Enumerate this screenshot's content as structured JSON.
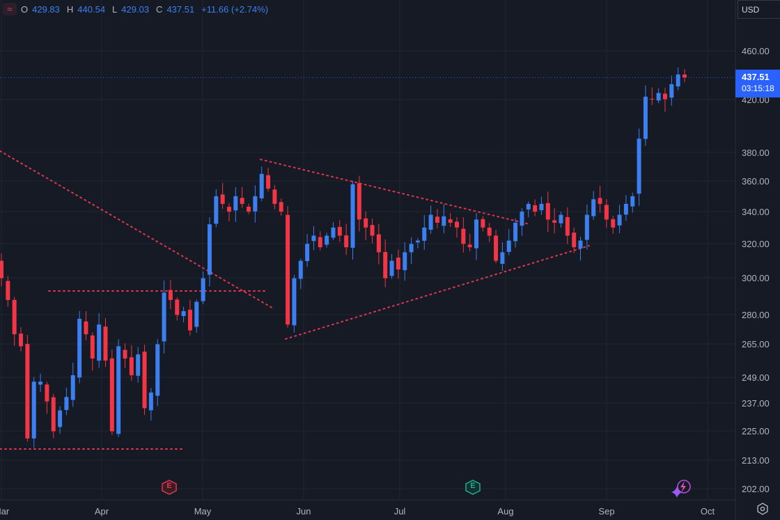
{
  "header": {
    "logo_icon": "tradingview-wave-icon",
    "ohlc": [
      {
        "key": "O",
        "value": "429.83"
      },
      {
        "key": "H",
        "value": "440.54"
      },
      {
        "key": "L",
        "value": "429.03"
      },
      {
        "key": "C",
        "value": "437.51"
      }
    ],
    "change": "+11.66 (+2.74%)"
  },
  "currency": "USD",
  "last_price": {
    "value": "437.51",
    "countdown": "03:15:18"
  },
  "colors": {
    "background": "#161a25",
    "up": "#3b7ff0",
    "down": "#f23645",
    "trendline": "#e0364f",
    "price_line": "#2962ff"
  },
  "chart_data": {
    "type": "candlestick",
    "y_scale": "log",
    "y_ticks": [
      460.0,
      420.0,
      380.0,
      360.0,
      340.0,
      320.0,
      300.0,
      280.0,
      265.0,
      249.0,
      237.0,
      225.0,
      213.0,
      202.0
    ],
    "y_tick_labels": [
      "460.00",
      "420.00",
      "380.00",
      "360.00",
      "340.00",
      "320.00",
      "300.00",
      "280.00",
      "265.00",
      "249.00",
      "237.00",
      "225.00",
      "213.00",
      "202.00"
    ],
    "x_ticks": [
      "Mar",
      "Apr",
      "May",
      "Jun",
      "Jul",
      "Aug",
      "Sep",
      "Oct"
    ],
    "last_price": 437.51,
    "closes": [
      300,
      288,
      270,
      264,
      222,
      247,
      247,
      238,
      225,
      234,
      240,
      250,
      278,
      270,
      258,
      275,
      257,
      225,
      264,
      258,
      250,
      260,
      235,
      242,
      265,
      292,
      288,
      280,
      282,
      272,
      287,
      300,
      332,
      350,
      345,
      340,
      350,
      345,
      340,
      350,
      365,
      355,
      345,
      340,
      275,
      300,
      310,
      320,
      325,
      318,
      325,
      330,
      325,
      318,
      358,
      335,
      330,
      325,
      315,
      300,
      310,
      305,
      315,
      320,
      322,
      330,
      338,
      333,
      337,
      333,
      330,
      320,
      318,
      335,
      330,
      325,
      310,
      315,
      322,
      333,
      340,
      345,
      340,
      345,
      335,
      333,
      338,
      325,
      318,
      322,
      338,
      348,
      345,
      335,
      330,
      338,
      345,
      350,
      390,
      422,
      420,
      425,
      420,
      432,
      440,
      437.51
    ],
    "events": [
      {
        "label": "E",
        "kind": "earnings-past",
        "position": "May"
      },
      {
        "label": "E",
        "kind": "earnings-upcoming",
        "position": "Aug"
      }
    ],
    "trendlines": [
      {
        "name": "long-downtrend"
      },
      {
        "name": "rectangle-top"
      },
      {
        "name": "rectangle-bottom"
      },
      {
        "name": "triangle-upper"
      },
      {
        "name": "triangle-lower"
      }
    ]
  }
}
